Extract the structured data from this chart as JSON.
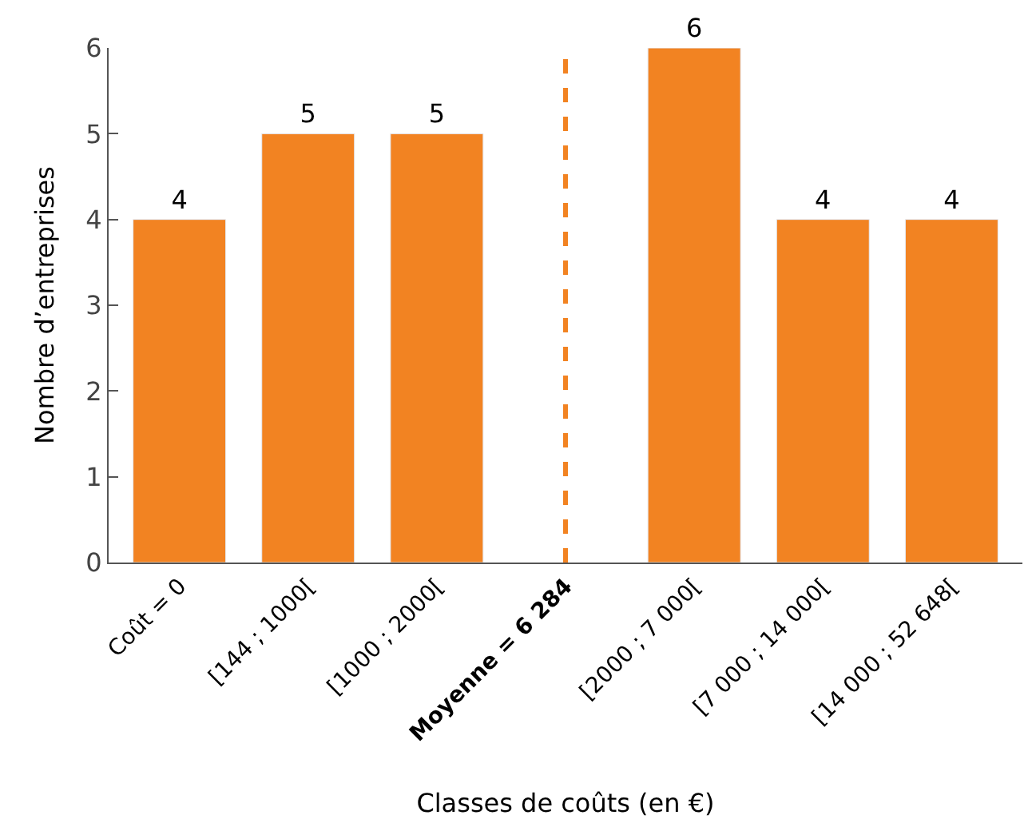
{
  "chart_data": {
    "type": "bar",
    "xlabel": "Classes de coûts (en €)",
    "ylabel": "Nombre d’entreprises",
    "categories": [
      "Coût = 0",
      "[144 ; 1000[",
      "[1000 ; 2000[",
      "Moyenne = 6 284",
      "[2000 ; 7 000[",
      "[7 000 ; 14 000[",
      "[14 000 ; 52 648["
    ],
    "values": [
      4,
      5,
      5,
      null,
      6,
      4,
      4
    ],
    "color": "#f28322",
    "ylim": [
      0,
      6
    ],
    "yticks": [
      0,
      1,
      2,
      3,
      4,
      5,
      6
    ],
    "data_labels": true,
    "ref_lines": [
      {
        "axis": "x",
        "value": "Moyenne = 6 284",
        "color": "#f28322",
        "line_style": "dashed"
      }
    ]
  }
}
